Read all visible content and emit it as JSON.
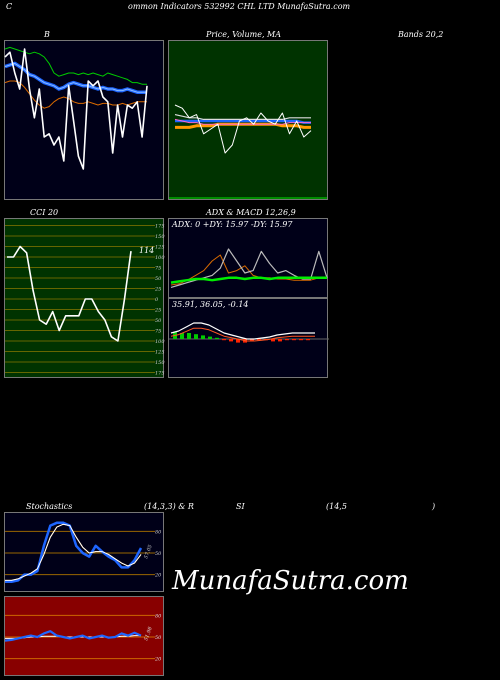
{
  "header": {
    "c_letter": "C",
    "title_rest": "ommon  Indicators 532992  CHL LTD MunafaSutra.com"
  },
  "titles": {
    "bb": "B",
    "price_ma": "Price, Volume, MA",
    "bands": "Bands 20,2",
    "cci": "CCI 20",
    "adx_macd": "ADX  & MACD 12,26,9",
    "stoch": "Stochastics",
    "stoch_params": "(14,3,3) & R",
    "si": "SI",
    "rsi_params": "(14,5",
    "paren": ")"
  },
  "adx_text": "ADX: 0  +DY: 15.97 -DY: 15.97",
  "macd_text": "35.91,  36.05,  -0.14",
  "cci_value_label": "114",
  "cci_ticks": [
    "175",
    "150",
    "125",
    "100",
    "75",
    "50",
    "25",
    "0",
    "25",
    "50",
    "75",
    "100",
    "125",
    "150",
    "175"
  ],
  "stoch_ticks": [
    "80",
    "50",
    "20"
  ],
  "stoch_value_label": "57.05",
  "rsi_ticks": [
    "80",
    "50",
    "20"
  ],
  "rsi_value_label": "51.98",
  "watermark": "MunafaSutra.com",
  "colors": {
    "green_bg": "#003300",
    "grid_olive": "#666600",
    "rsi_bg": "#880000",
    "navy_bg": "#000018"
  },
  "chart_data": [
    {
      "type": "line",
      "title": "B",
      "series": [
        {
          "values": [
            95,
            96,
            95,
            94,
            93,
            92,
            93,
            92,
            90,
            86,
            80,
            78,
            79,
            80,
            80,
            79,
            80,
            79,
            80,
            79,
            78,
            80,
            79,
            78,
            77,
            76,
            74,
            74,
            73,
            73
          ]
        },
        {
          "values": [
            84,
            85,
            86,
            84,
            82,
            79,
            78,
            76,
            74,
            73,
            72,
            70,
            71,
            73,
            74,
            73,
            72,
            72,
            71,
            70,
            71,
            70,
            70,
            69,
            69,
            70,
            69,
            68,
            68,
            68
          ]
        },
        {
          "values": [
            74,
            75,
            75,
            74,
            71,
            67,
            63,
            60,
            58,
            59,
            62,
            64,
            65,
            64,
            62,
            61,
            61,
            62,
            61,
            60,
            61,
            61,
            60,
            60,
            61,
            60,
            61,
            62,
            62,
            62
          ]
        },
        {
          "values": [
            90,
            93,
            80,
            70,
            95,
            70,
            52,
            70,
            40,
            42,
            35,
            40,
            25,
            72,
            50,
            28,
            20,
            75,
            72,
            75,
            65,
            62,
            30,
            60,
            40,
            60,
            58,
            62,
            40,
            72
          ]
        }
      ]
    },
    {
      "type": "line",
      "title": "Price, Volume, MA",
      "series": [
        {
          "values": [
            46,
            46,
            46,
            47,
            47,
            47,
            48,
            48,
            48,
            48,
            48,
            48,
            48,
            48,
            48,
            47,
            47,
            47,
            46,
            46
          ]
        },
        {
          "values": [
            50,
            50,
            50,
            50,
            50,
            50,
            50,
            50,
            50,
            50,
            50,
            50,
            50,
            50,
            50,
            50,
            50,
            50,
            49,
            49
          ]
        },
        {
          "values": [
            54,
            53,
            52,
            52,
            51,
            51,
            51,
            51,
            51,
            51,
            51,
            51,
            51,
            51,
            51,
            51,
            52,
            52,
            52,
            52
          ]
        },
        {
          "values": [
            60,
            58,
            52,
            54,
            42,
            45,
            48,
            30,
            35,
            50,
            52,
            48,
            55,
            50,
            48,
            55,
            42,
            50,
            40,
            44
          ]
        }
      ]
    },
    {
      "type": "line",
      "title": "CCI 20",
      "series": [
        {
          "values": [
            100,
            100,
            125,
            110,
            20,
            -50,
            -60,
            -30,
            -75,
            -40,
            -40,
            -40,
            0,
            0,
            -30,
            -50,
            -90,
            -100,
            0,
            114
          ]
        }
      ]
    },
    {
      "type": "line",
      "title": "ADX & MACD 12,26,9",
      "series": [
        {
          "values": [
            12,
            13,
            14,
            15,
            15,
            14,
            15,
            16,
            16,
            15,
            16,
            16,
            15,
            16,
            16,
            16,
            16,
            16,
            16,
            16
          ]
        },
        {
          "values": [
            8,
            10,
            12,
            14,
            16,
            18,
            24,
            40,
            30,
            20,
            22,
            38,
            28,
            20,
            22,
            18,
            15,
            15,
            38,
            16
          ]
        },
        {
          "values": [
            10,
            11,
            14,
            18,
            22,
            30,
            35,
            20,
            22,
            26,
            18,
            16,
            16,
            15,
            15,
            14,
            14,
            14,
            16,
            16
          ]
        }
      ]
    },
    {
      "type": "line",
      "title": "Stochastics (14,3,3)",
      "ylim": [
        0,
        100
      ],
      "series": [
        {
          "values": [
            10,
            10,
            12,
            20,
            20,
            25,
            60,
            88,
            92,
            92,
            88,
            60,
            50,
            45,
            60,
            52,
            45,
            40,
            30,
            30,
            40,
            57
          ]
        },
        {
          "values": [
            12,
            12,
            14,
            18,
            22,
            28,
            48,
            72,
            86,
            90,
            88,
            72,
            58,
            50,
            52,
            52,
            48,
            42,
            36,
            32,
            36,
            48
          ]
        }
      ]
    },
    {
      "type": "line",
      "title": "RSI (14,5)",
      "ylim": [
        0,
        100
      ],
      "series": [
        {
          "values": [
            45,
            46,
            48,
            50,
            52,
            50,
            55,
            58,
            52,
            50,
            48,
            50,
            52,
            48,
            50,
            52,
            49,
            50,
            55,
            52,
            56,
            52
          ]
        },
        {
          "values": [
            48,
            48,
            48,
            49,
            50,
            50,
            51,
            51,
            51,
            50,
            50,
            50,
            50,
            50,
            50,
            50,
            50,
            50,
            51,
            51,
            52,
            52
          ]
        }
      ]
    }
  ]
}
